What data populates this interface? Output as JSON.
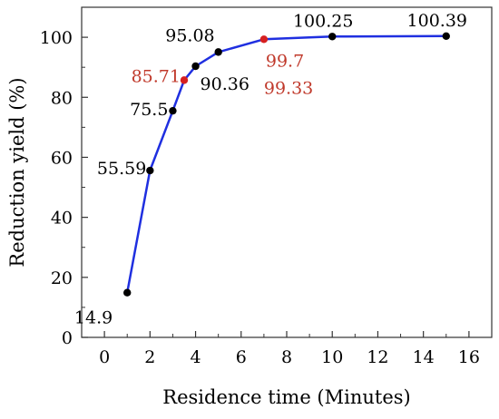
{
  "chart_data": {
    "type": "line",
    "title": "",
    "xlabel": "Residence time (Minutes)",
    "ylabel": "Reduction yield (%)",
    "xlim": [
      -1,
      17
    ],
    "ylim": [
      0,
      110
    ],
    "xticks": [
      0,
      2,
      4,
      6,
      8,
      10,
      12,
      14,
      16
    ],
    "yticks": [
      0,
      20,
      40,
      60,
      80,
      100
    ],
    "grid": false,
    "legend": "none",
    "line_color": "#1f2fe0",
    "series": [
      {
        "values": [
          {
            "x": 1,
            "y": 14.9,
            "label": "14.9",
            "color": "#000000"
          },
          {
            "x": 2,
            "y": 55.59,
            "label": "55.59",
            "color": "#000000"
          },
          {
            "x": 3,
            "y": 75.5,
            "label": "75.5",
            "color": "#000000"
          },
          {
            "x": 3.5,
            "y": 85.71,
            "label": "85.71",
            "color": "#c0392b"
          },
          {
            "x": 4,
            "y": 90.36,
            "label": "90.36",
            "color": "#000000"
          },
          {
            "x": 5,
            "y": 95.08,
            "label": "95.08",
            "color": "#000000"
          },
          {
            "x": 7,
            "y": 99.33,
            "label": "99.33",
            "color": "#c0392b"
          },
          {
            "x": 10,
            "y": 100.25,
            "label": "100.25",
            "color": "#000000"
          },
          {
            "x": 15,
            "y": 100.39,
            "label": "100.39",
            "color": "#000000"
          }
        ]
      }
    ],
    "annotations": [
      {
        "text": "99.7",
        "color": "#c0392b"
      }
    ]
  }
}
